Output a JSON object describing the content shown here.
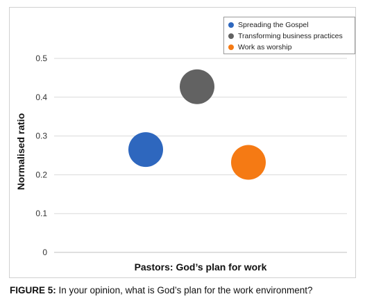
{
  "chart_data": {
    "type": "scatter",
    "xlabel": "Pastors: God’s plan for work",
    "ylabel": "Normalised ratio",
    "ylim": [
      0,
      0.5
    ],
    "yticks": [
      "0",
      "0.1",
      "0.2",
      "0.3",
      "0.4",
      "0.5"
    ],
    "grid": true,
    "legend_position": "top-right",
    "series": [
      {
        "name": "Spreading the Gospel",
        "x": 1,
        "y": 0.265,
        "color": "#2e67be"
      },
      {
        "name": "Transforming business practices",
        "x": 2,
        "y": 0.427,
        "color": "#626262"
      },
      {
        "name": "Work as worship",
        "x": 3,
        "y": 0.232,
        "color": "#f57a14"
      }
    ]
  },
  "caption": {
    "label": "FIGURE 5:",
    "text": " In your opinion, what is God’s plan for the work environment?"
  }
}
